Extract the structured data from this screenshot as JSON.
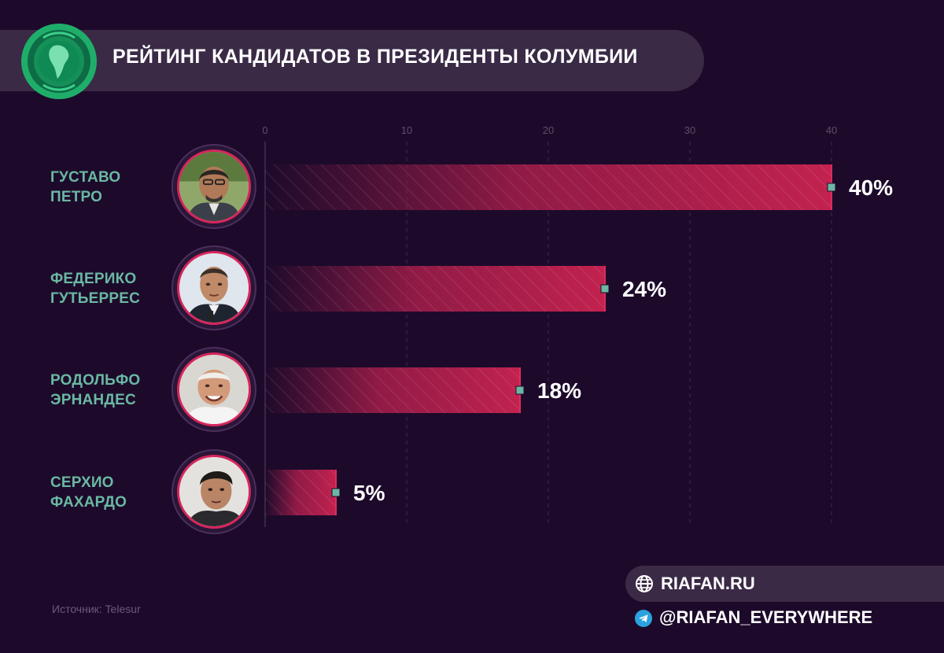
{
  "header": {
    "title": "РЕЙТИНГ КАНДИДАТОВ В ПРЕЗИДЕНТЫ КОЛУМБИИ"
  },
  "chart_data": {
    "type": "bar",
    "orientation": "horizontal",
    "title": "РЕЙТИНГ КАНДИДАТОВ В ПРЕЗИДЕНТЫ КОЛУМБИИ",
    "categories": [
      "ГУСТАВО ПЕТРО",
      "ФЕДЕРИКО ГУТЬЕРРЕС",
      "РОДОЛЬФО ЭРНАНДЕС",
      "СЕРХИО ФАХАРДО"
    ],
    "values": [
      40,
      24,
      18,
      5
    ],
    "value_labels": [
      "40%",
      "24%",
      "18%",
      "5%"
    ],
    "x_ticks": [
      0,
      10,
      20,
      30,
      40
    ],
    "tick_labels": [
      "0",
      "10",
      "20",
      "30",
      "40"
    ],
    "xlim": [
      0,
      40
    ],
    "grid": true,
    "bar_color": "#b8204f",
    "marker_color": "#6ab8a2"
  },
  "candidates": [
    {
      "first": "ГУСТАВО",
      "last": "ПЕТРО"
    },
    {
      "first": "ФЕДЕРИКО",
      "last": "ГУТЬЕРРЕС"
    },
    {
      "first": "РОДОЛЬФО",
      "last": "ЭРНАНДЕС"
    },
    {
      "first": "СЕРХИО",
      "last": "ФАХАРДО"
    }
  ],
  "footer": {
    "source": "Источник: Telesur",
    "site": "RIAFAN.RU",
    "telegram": "@RIAFAN_EVERYWHERE"
  },
  "colors": {
    "background": "#1d0a2b",
    "pill": "#3a2a46",
    "name_text": "#6ab8a2",
    "avatar_ring": "#d6265b",
    "logo_green": "#1fae6a"
  }
}
